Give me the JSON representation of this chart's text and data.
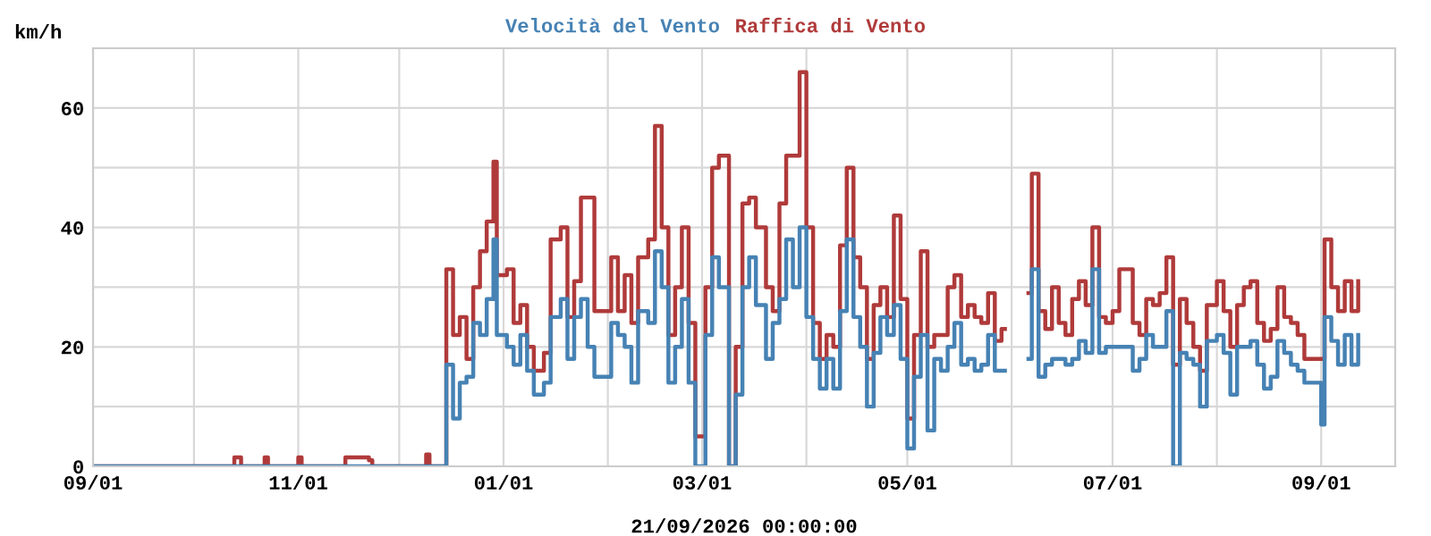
{
  "chart_data": {
    "type": "step",
    "xlabel": "21/09/2026 00:00:00",
    "ylabel": "km/h",
    "legend": "top",
    "grid": true,
    "line_style": "solid",
    "marker": "none",
    "xlim": [
      "2025-09-01",
      "2026-09-23"
    ],
    "ylim": [
      0,
      70
    ],
    "xticks": [
      {
        "value": "2025-09-01",
        "label": "09/01"
      },
      {
        "value": "2025-10-01",
        "label": null
      },
      {
        "value": "2025-11-01",
        "label": "11/01"
      },
      {
        "value": "2025-12-01",
        "label": null
      },
      {
        "value": "2026-01-01",
        "label": "01/01"
      },
      {
        "value": "2026-02-01",
        "label": null
      },
      {
        "value": "2026-03-01",
        "label": "03/01"
      },
      {
        "value": "2026-04-01",
        "label": null
      },
      {
        "value": "2026-05-01",
        "label": "05/01"
      },
      {
        "value": "2026-06-01",
        "label": null
      },
      {
        "value": "2026-07-01",
        "label": "07/01"
      },
      {
        "value": "2026-08-01",
        "label": null
      },
      {
        "value": "2026-09-01",
        "label": "09/01"
      }
    ],
    "yticks": [
      0,
      {
        "value": 10,
        "label": null
      },
      20,
      {
        "value": 30,
        "label": null
      },
      40,
      {
        "value": 50,
        "label": null
      },
      60
    ],
    "x": [
      "2025-09-01",
      "2025-10-12",
      "2025-10-13",
      "2025-10-15",
      "2025-10-21",
      "2025-10-22",
      "2025-10-23",
      "2025-10-29",
      "2025-11-01",
      "2025-11-02",
      "2025-11-14",
      "2025-11-15",
      "2025-11-19",
      "2025-11-22",
      "2025-11-23",
      "2025-12-07",
      "2025-12-09",
      "2025-12-10",
      "2025-12-14",
      "2025-12-15",
      "2025-12-17",
      "2025-12-19",
      "2025-12-21",
      "2025-12-23",
      "2025-12-25",
      "2025-12-27",
      "2025-12-29",
      "2025-12-30",
      "2026-01-02",
      "2026-01-04",
      "2026-01-06",
      "2026-01-08",
      "2026-01-10",
      "2026-01-13",
      "2026-01-15",
      "2026-01-18",
      "2026-01-20",
      "2026-01-22",
      "2026-01-24",
      "2026-01-26",
      "2026-01-28",
      "2026-02-02",
      "2026-02-04",
      "2026-02-06",
      "2026-02-08",
      "2026-02-10",
      "2026-02-13",
      "2026-02-15",
      "2026-02-17",
      "2026-02-19",
      "2026-02-21",
      "2026-02-23",
      "2026-02-25",
      "2026-02-27",
      "2026-03-02",
      "2026-03-04",
      "2026-03-06",
      "2026-03-09",
      "2026-03-11",
      "2026-03-13",
      "2026-03-15",
      "2026-03-17",
      "2026-03-20",
      "2026-03-22",
      "2026-03-24",
      "2026-03-26",
      "2026-03-28",
      "2026-03-30",
      "2026-04-01",
      "2026-04-03",
      "2026-04-05",
      "2026-04-07",
      "2026-04-09",
      "2026-04-11",
      "2026-04-13",
      "2026-04-15",
      "2026-04-17",
      "2026-04-19",
      "2026-04-21",
      "2026-04-23",
      "2026-04-25",
      "2026-04-27",
      "2026-04-29",
      "2026-05-01",
      "2026-05-03",
      "2026-05-05",
      "2026-05-07",
      "2026-05-09",
      "2026-05-11",
      "2026-05-13",
      "2026-05-15",
      "2026-05-17",
      "2026-05-19",
      "2026-05-21",
      "2026-05-23",
      "2026-05-25",
      "2026-05-27",
      "2026-05-29",
      "2026-05-30",
      "2026-06-06",
      "2026-06-07",
      "2026-06-09",
      "2026-06-11",
      "2026-06-13",
      "2026-06-15",
      "2026-06-17",
      "2026-06-19",
      "2026-06-21",
      "2026-06-23",
      "2026-06-25",
      "2026-06-27",
      "2026-06-29",
      "2026-07-01",
      "2026-07-03",
      "2026-07-05",
      "2026-07-07",
      "2026-07-09",
      "2026-07-11",
      "2026-07-13",
      "2026-07-15",
      "2026-07-17",
      "2026-07-19",
      "2026-07-21",
      "2026-07-23",
      "2026-07-25",
      "2026-07-27",
      "2026-07-29",
      "2026-08-01",
      "2026-08-03",
      "2026-08-05",
      "2026-08-07",
      "2026-08-09",
      "2026-08-11",
      "2026-08-13",
      "2026-08-15",
      "2026-08-17",
      "2026-08-19",
      "2026-08-21",
      "2026-08-23",
      "2026-08-25",
      "2026-08-27",
      "2026-09-01",
      "2026-09-02",
      "2026-09-04",
      "2026-09-06",
      "2026-09-08",
      "2026-09-10",
      "2026-09-12"
    ],
    "series": [
      {
        "name": "Raffica di Vento",
        "color": "#b03a3a",
        "values": [
          0,
          0,
          1.5,
          0,
          0,
          1.5,
          0,
          0,
          1.5,
          0,
          0,
          1.5,
          1.5,
          1,
          0,
          0,
          2,
          0,
          0,
          33,
          22,
          25,
          18,
          30,
          36,
          41,
          51,
          32,
          33,
          24,
          27,
          20,
          16,
          19,
          38,
          40,
          25,
          31,
          45,
          45,
          26,
          35,
          26,
          32,
          24,
          35,
          38,
          57,
          40,
          22,
          30,
          40,
          24,
          5,
          30,
          50,
          52,
          0,
          20,
          44,
          45,
          40,
          30,
          26,
          44,
          52,
          52,
          66,
          40,
          24,
          18,
          22,
          20,
          37,
          50,
          35,
          30,
          18,
          27,
          30,
          25,
          42,
          28,
          8,
          22,
          36,
          20,
          22,
          22,
          30,
          32,
          25,
          27,
          25,
          24,
          29,
          21,
          23,
          null,
          29,
          49,
          26,
          23,
          30,
          24,
          22,
          28,
          31,
          27,
          40,
          25,
          24,
          26,
          33,
          33,
          24,
          22,
          28,
          27,
          29,
          35,
          17,
          28,
          24,
          20,
          16,
          27,
          31,
          26,
          20,
          27,
          30,
          31,
          24,
          21,
          23,
          30,
          25,
          24,
          22,
          18,
          18,
          38,
          30,
          26,
          31,
          26,
          31
        ]
      },
      {
        "name": "Velocità del Vento",
        "color": "#4682b4",
        "values": [
          0,
          0,
          0,
          0,
          0,
          0,
          0,
          0,
          0,
          0,
          0,
          0,
          0,
          0,
          0,
          0,
          0,
          0,
          0,
          17,
          8,
          14,
          15,
          24,
          22,
          28,
          38,
          22,
          20,
          17,
          22,
          16,
          12,
          14,
          25,
          28,
          18,
          25,
          28,
          20,
          15,
          24,
          22,
          20,
          14,
          26,
          24,
          36,
          30,
          14,
          20,
          28,
          14,
          0,
          22,
          35,
          30,
          0,
          12,
          30,
          35,
          27,
          18,
          24,
          28,
          38,
          30,
          40,
          25,
          18,
          13,
          18,
          13,
          26,
          38,
          25,
          20,
          10,
          19,
          25,
          22,
          27,
          18,
          3,
          15,
          22,
          6,
          18,
          16,
          20,
          24,
          17,
          18,
          16,
          17,
          22,
          16,
          16,
          null,
          18,
          33,
          15,
          17,
          18,
          18,
          17,
          18,
          21,
          19,
          33,
          19,
          20,
          20,
          20,
          20,
          16,
          18,
          22,
          20,
          20,
          26,
          0,
          19,
          18,
          17,
          10,
          21,
          22,
          19,
          12,
          20,
          20,
          21,
          17,
          13,
          15,
          21,
          19,
          17,
          16,
          14,
          7,
          25,
          21,
          17,
          22,
          17,
          22
        ]
      }
    ]
  }
}
